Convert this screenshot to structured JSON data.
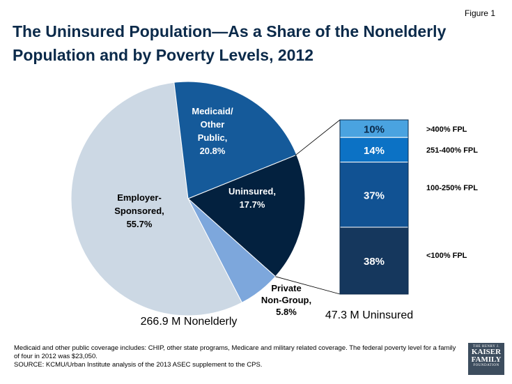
{
  "figure_label": "Figure 1",
  "title": "The Uninsured Population—As a Share of the Nonelderly Population and by Poverty Levels, 2012",
  "colors": {
    "employer": "#ccd8e4",
    "medicaid": "#155a9a",
    "uninsured": "#03213f",
    "private": "#7da7dc",
    "bar_gt400": "#4aa3e0",
    "bar_251_400": "#0c72c5",
    "bar_100_250": "#115293",
    "bar_lt100": "#15375d",
    "title": "#0b2a4a"
  },
  "chart_data": [
    {
      "type": "pie",
      "caption": "266.9 M Nonelderly",
      "slices": [
        {
          "key": "uninsured",
          "label_lines": [
            "Uninsured,",
            "17.7%"
          ],
          "value": 17.7
        },
        {
          "key": "private",
          "label_lines": [
            "Private",
            "Non-Group,",
            "5.8%"
          ],
          "value": 5.8
        },
        {
          "key": "employer",
          "label_lines": [
            "Employer-",
            "Sponsored,",
            "55.7%"
          ],
          "value": 55.7
        },
        {
          "key": "medicaid",
          "label_lines": [
            "Medicaid/",
            "Other",
            "Public,",
            "20.8%"
          ],
          "value": 20.8
        }
      ]
    },
    {
      "type": "bar",
      "stacked": true,
      "caption": "47.3 M Uninsured",
      "segments": [
        {
          "key": "bar_gt400",
          "category": ">400% FPL",
          "value": 10,
          "label": "10%"
        },
        {
          "key": "bar_251_400",
          "category": "251-400% FPL",
          "value": 14,
          "label": "14%"
        },
        {
          "key": "bar_100_250",
          "category": "100-250% FPL",
          "value": 37,
          "label": "37%"
        },
        {
          "key": "bar_lt100",
          "category": "<100% FPL",
          "value": 38,
          "label": "38%"
        }
      ]
    }
  ],
  "footnote": {
    "line1": "Medicaid and other public coverage includes: CHIP, other state programs, Medicare and military related coverage.  The federal poverty level for a family of four in 2012 was $23,050.",
    "line2": "SOURCE: KCMU/Urban Institute analysis of the 2013 ASEC supplement to the CPS."
  },
  "logo": {
    "line1": "THE HENRY J.",
    "line2": "KAISER",
    "line3": "FAMILY",
    "line4": "FOUNDATION"
  }
}
